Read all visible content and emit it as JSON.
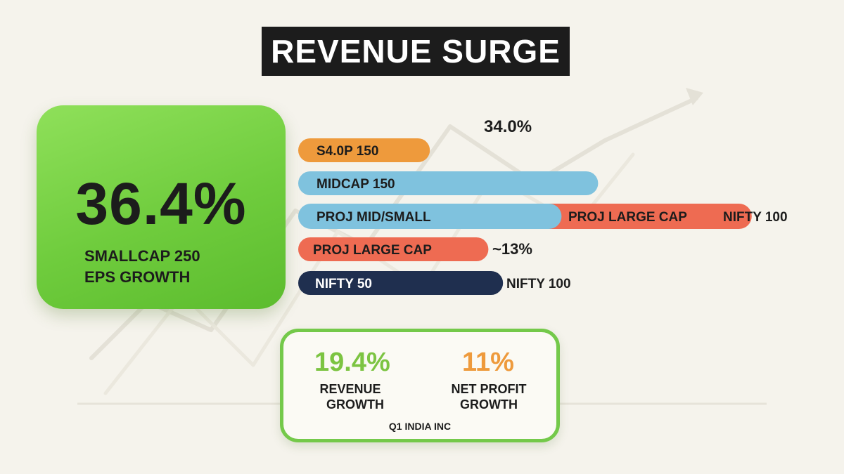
{
  "title": "REVENUE SURGE",
  "hero": {
    "value": "36.4%",
    "label_line1": "SMALLCAP 250",
    "label_line2": "EPS GROWTH",
    "color": "#6fcc3d"
  },
  "chart_data": {
    "type": "bar",
    "orientation": "horizontal",
    "title": "",
    "xlabel": "",
    "ylabel": "",
    "annotations": [
      "34.0%",
      "~13%",
      "NIFTY 100",
      "NIFTY 100"
    ],
    "bars": [
      {
        "label": "S4.0P 150",
        "value": 18,
        "color": "#ee9a3c"
      },
      {
        "label": "MIDCAP 150",
        "value": 41,
        "color": "#7fc2de"
      },
      {
        "label": "PROJ MID/SMALL",
        "value": 36,
        "color": "#7fc2de"
      },
      {
        "label": "PROJ LARGE CAP",
        "value": 26,
        "color": "#ee6b52"
      },
      {
        "label": "PROJ LARGE CAP",
        "value": 26,
        "color": "#ee6b52"
      },
      {
        "label": "NIFTY 50",
        "value": 28,
        "color": "#1f2f4f"
      }
    ],
    "ylim": [
      0,
      60
    ]
  },
  "stats": {
    "revenue": {
      "value": "19.4%",
      "line1": "REVENUE",
      "line2": "GROWTH",
      "color": "#7cc442"
    },
    "profit": {
      "value": "11%",
      "line1": "NET PROFIT",
      "line2": "GROWTH",
      "color": "#ee9a3c"
    },
    "source": "Q1 INDIA INC"
  }
}
